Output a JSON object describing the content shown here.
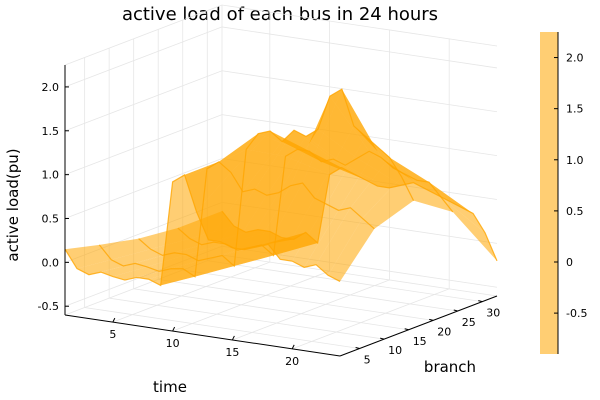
{
  "chart_data": {
    "type": "surface",
    "title": "active load of each bus in 24 hours",
    "xlabel": "time",
    "ylabel": "branch",
    "zlabel": "active load(pu)",
    "x_ticks": [
      5,
      10,
      15,
      20
    ],
    "y_ticks": [
      5,
      10,
      15,
      20,
      25,
      30
    ],
    "z_ticks": [
      "-0.5",
      "0.0",
      "0.5",
      "1.0",
      "1.5",
      "2.0"
    ],
    "xlim": [
      1,
      24
    ],
    "ylim": [
      1,
      33
    ],
    "zlim": [
      -0.6,
      2.25
    ],
    "colorbar": {
      "ticks": [
        "-0.5",
        "0",
        "0.5",
        "1.0",
        "1.5",
        "2.0"
      ],
      "range": [
        -0.9,
        2.25
      ],
      "color": "#ffa500"
    },
    "surface_color": "#ffa500",
    "series": [
      {
        "branch": 1,
        "values": [
          0.15,
          -0.05,
          -0.1,
          -0.05,
          -0.08,
          -0.1,
          -0.05,
          -0.05,
          -0.1,
          1.1,
          1.2,
          0.8,
          0.5,
          0.5,
          0.45,
          0.45,
          0.5,
          0.55,
          0.4,
          0.4,
          0.35,
          0.4,
          0.3,
          0.25
        ]
      },
      {
        "branch": 8,
        "values": [
          0.05,
          -0.1,
          -0.15,
          -0.1,
          -0.12,
          -0.15,
          -0.1,
          -0.08,
          -0.15,
          1.1,
          1.2,
          1.1,
          0.9,
          0.95,
          0.9,
          0.95,
          1.05,
          1.1,
          0.95,
          0.9,
          0.85,
          0.9,
          0.8,
          0.7
        ]
      },
      {
        "branch": 16,
        "values": [
          -0.05,
          -0.15,
          -0.2,
          -0.15,
          -0.15,
          -0.2,
          -0.15,
          -0.1,
          -0.2,
          1.15,
          1.35,
          1.4,
          1.3,
          1.45,
          1.4,
          1.5,
          1.9,
          2.0,
          1.6,
          1.5,
          1.4,
          1.3,
          1.1,
          0.85
        ]
      },
      {
        "branch": 24,
        "values": [
          -0.1,
          -0.2,
          -0.25,
          -0.2,
          -0.2,
          -0.25,
          -0.2,
          -0.15,
          -0.25,
          0.9,
          1.0,
          1.0,
          0.9,
          0.95,
          0.9,
          1.0,
          1.1,
          1.05,
          0.95,
          0.9,
          0.85,
          0.85,
          0.7,
          0.55
        ]
      },
      {
        "branch": 33,
        "values": [
          -0.1,
          -0.25,
          -0.3,
          -0.25,
          -0.25,
          -0.3,
          -0.3,
          -0.2,
          -0.3,
          0.5,
          0.6,
          0.55,
          0.5,
          0.45,
          0.45,
          0.5,
          0.55,
          0.5,
          0.45,
          0.4,
          0.35,
          0.3,
          0.1,
          -0.2
        ]
      }
    ]
  }
}
